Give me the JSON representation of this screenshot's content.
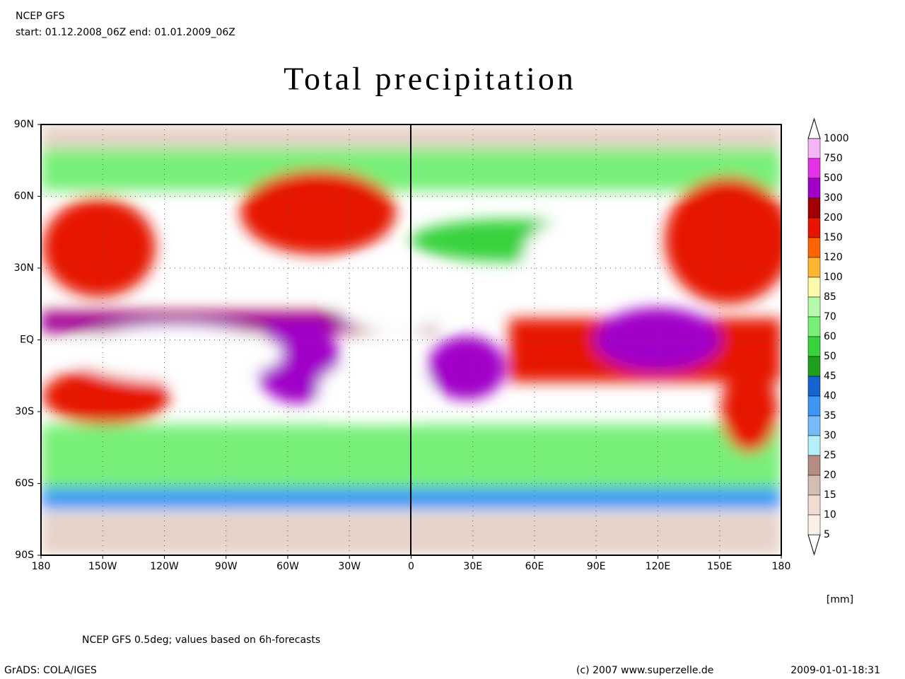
{
  "header": {
    "model": "NCEP GFS",
    "period": "start: 01.12.2008_06Z end: 01.01.2009_06Z"
  },
  "title": "Total precipitation",
  "map": {
    "lat_labels": [
      "90N",
      "60N",
      "30N",
      "EQ",
      "30S",
      "60S",
      "90S"
    ],
    "lon_labels": [
      "180",
      "150W",
      "120W",
      "90W",
      "60W",
      "30W",
      "0",
      "30E",
      "60E",
      "90E",
      "120E",
      "150E",
      "180"
    ]
  },
  "legend": {
    "unit": "[mm]",
    "levels": [
      1000,
      750,
      500,
      300,
      200,
      150,
      120,
      100,
      85,
      70,
      60,
      50,
      45,
      40,
      35,
      30,
      25,
      20,
      15,
      10,
      5
    ],
    "colors": [
      "#f5b4f5",
      "#e632e6",
      "#a000c8",
      "#a00000",
      "#e61400",
      "#ff6400",
      "#ffb432",
      "#fffaaa",
      "#b4faaa",
      "#78f078",
      "#37d23c",
      "#1ea01e",
      "#1464d2",
      "#3c96f5",
      "#78b9fa",
      "#b4f0fa",
      "#b48c82",
      "#d2beb4",
      "#f0dcd2",
      "#faf0e6"
    ]
  },
  "footer": {
    "note": "NCEP GFS 0.5deg; values based on 6h-forecasts",
    "software": "GrADS: COLA/IGES",
    "copyright": "(c) 2007 www.superzelle.de",
    "timestamp": "2009-01-01-18:31"
  }
}
